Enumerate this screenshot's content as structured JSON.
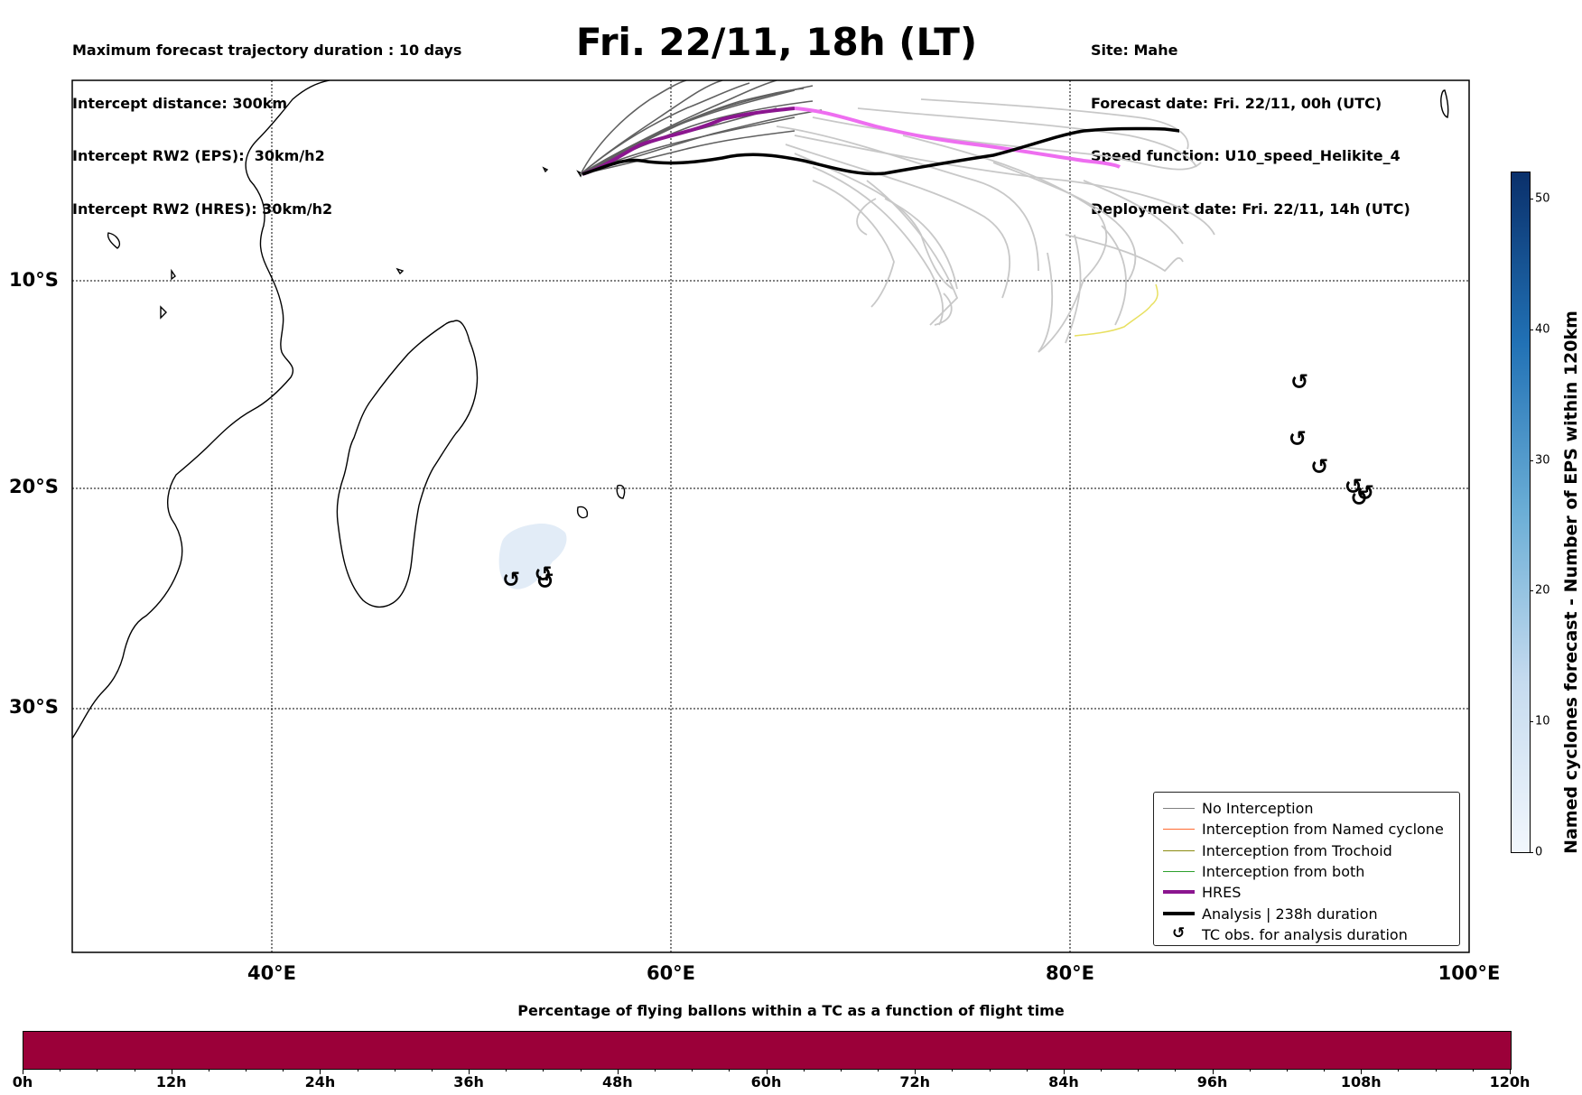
{
  "info_left": [
    "Maximum forecast trajectory duration : 10 days",
    "Intercept distance: 300km",
    "Intercept RW2 (EPS):  30km/h2",
    "Intercept RW2 (HRES): 30km/h2"
  ],
  "info_right": [
    "Site: Mahe",
    "Forecast date: Fri. 22/11, 00h (UTC)",
    "Speed function: U10_speed_Helikite_4",
    "Deployment date: Fri. 22/11, 14h (UTC)"
  ],
  "title": "Fri. 22/11, 18h (LT)",
  "map": {
    "lon_range": [
      30,
      100
    ],
    "lat_range": [
      2,
      -42
    ],
    "lat_ticks": [
      "10°S",
      "20°S",
      "30°S"
    ],
    "lon_ticks": [
      "40°E",
      "60°E",
      "80°E",
      "100°E"
    ],
    "grid": "dotted",
    "colors": {
      "eps_track": "#606060",
      "eps_faded": "#c8c8c8",
      "hres": "#8b168f",
      "hres_later": "#ee6ef0",
      "analysis": "#000000",
      "cyclone_density": "#e2ecf7",
      "contour": "#e8e060"
    },
    "tc_symbol": "↺",
    "tc_obs_lonlat": [
      [
        52,
        -23.2
      ],
      [
        53.6,
        -22.9
      ],
      [
        53.7,
        -23.3
      ],
      [
        91.5,
        -13.2
      ],
      [
        91.4,
        -16.1
      ],
      [
        92.5,
        -17.5
      ],
      [
        94.2,
        -18.5
      ],
      [
        94.8,
        -18.8
      ],
      [
        94.5,
        -19.1
      ]
    ]
  },
  "legend": {
    "items": [
      {
        "label": "No Interception",
        "color": "#808080",
        "style": "thin"
      },
      {
        "label": "Interception from Named cyclone",
        "color": "#ff6a30",
        "style": "thin"
      },
      {
        "label": "Interception from Trochoid",
        "color": "#8a8a10",
        "style": "thin"
      },
      {
        "label": "Interception from both",
        "color": "#2ca02c",
        "style": "thin"
      },
      {
        "label": "HRES",
        "color": "#8b168f",
        "style": "thick"
      },
      {
        "label": "Analysis | 238h duration",
        "color": "#000000",
        "style": "thick"
      },
      {
        "label": "TC obs. for analysis duration",
        "color": "#000000",
        "style": "symbol"
      }
    ]
  },
  "colorbar": {
    "label": "Named cyclones forecast - Number of EPS within 120km",
    "ticks": [
      "0",
      "10",
      "20",
      "30",
      "40",
      "50"
    ],
    "range": [
      0,
      52
    ],
    "color_low": "#f2f7fd",
    "color_high": "#0a306b"
  },
  "flight_bar": {
    "title": "Percentage of flying ballons within a TC as a function of flight time",
    "ticks": [
      "0h",
      "12h",
      "24h",
      "36h",
      "48h",
      "60h",
      "72h",
      "84h",
      "96h",
      "108h",
      "120h"
    ],
    "color": "#9b0039"
  }
}
